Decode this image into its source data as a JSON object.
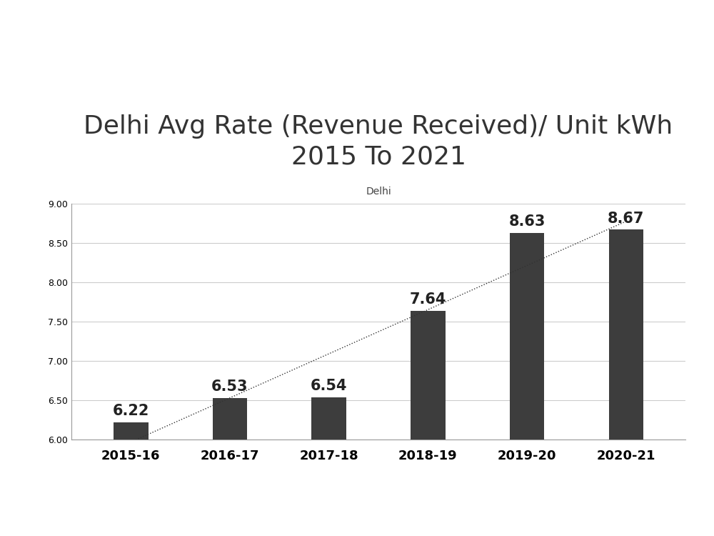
{
  "chart_data": {
    "type": "bar",
    "title": "Delhi Avg Rate (Revenue Received)/ Unit kWh\n2015 To 2021",
    "subtitle": "Delhi",
    "categories": [
      "2015-16",
      "2016-17",
      "2017-18",
      "2018-19",
      "2019-20",
      "2020-21"
    ],
    "values": [
      6.22,
      6.53,
      6.54,
      7.64,
      8.63,
      8.67
    ],
    "color": "#3d3d3d",
    "ylim": [
      6.0,
      9.0
    ],
    "yticks": [
      {
        "value": 6.0,
        "label": "6.00"
      },
      {
        "value": 6.5,
        "label": "6.50"
      },
      {
        "value": 7.0,
        "label": "7.00"
      },
      {
        "value": 7.5,
        "label": "7.50"
      },
      {
        "value": 8.0,
        "label": "8.00"
      },
      {
        "value": 8.5,
        "label": "8.50"
      },
      {
        "value": 9.0,
        "label": "9.00"
      }
    ],
    "grid": true,
    "data_labels": true
  }
}
